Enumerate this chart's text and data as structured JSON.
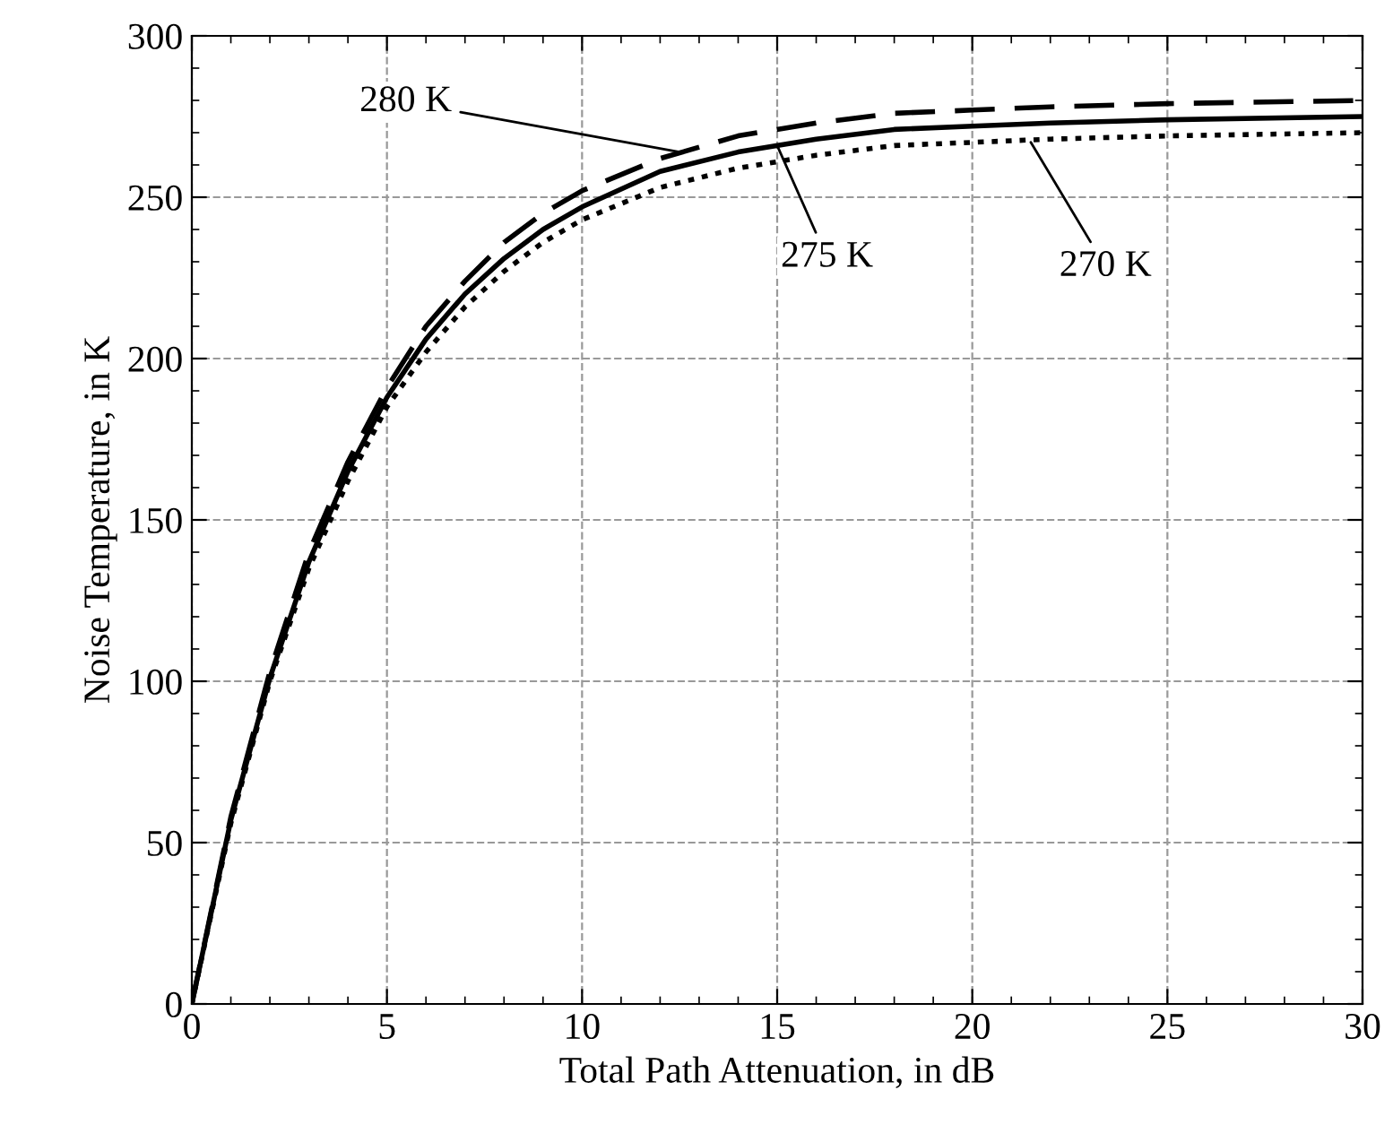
{
  "chart_data": {
    "type": "line",
    "xlabel": "Total Path Attenuation, in dB",
    "ylabel": "Noise Temperature, in K",
    "x": [
      0,
      1,
      2,
      3,
      4,
      5,
      6,
      7,
      8,
      9,
      10,
      12,
      14,
      16,
      18,
      20,
      22,
      25,
      30
    ],
    "series": [
      {
        "color": "#000000",
        "line_style": "dashed",
        "values": [
          0,
          58,
          103,
          140,
          168,
          191,
          210,
          224,
          236,
          245,
          252,
          262,
          269,
          273,
          276,
          277,
          278,
          279,
          280
        ]
      },
      {
        "color": "#000000",
        "line_style": "solid",
        "values": [
          0,
          57,
          101,
          137,
          165,
          188,
          206,
          220,
          231,
          240,
          247,
          258,
          264,
          268,
          271,
          272,
          273,
          274,
          275
        ]
      },
      {
        "color": "#000000",
        "line_style": "dotted",
        "values": [
          0,
          56,
          100,
          135,
          162,
          185,
          202,
          216,
          227,
          236,
          243,
          253,
          259,
          263,
          266,
          267,
          268,
          269,
          270
        ]
      }
    ],
    "annotations": [
      {
        "text": "280 K",
        "x": 12.5,
        "y": 264
      },
      {
        "text": "275 K",
        "x": 15,
        "y": 266
      },
      {
        "text": "270 K",
        "x": 21.5,
        "y": 267
      }
    ],
    "xlim": [
      0,
      30
    ],
    "ylim": [
      0,
      300
    ],
    "xticks": [
      0,
      5,
      10,
      15,
      20,
      25,
      30
    ],
    "yticks": [
      0,
      50,
      100,
      150,
      200,
      250,
      300
    ],
    "grid": true,
    "legend": false
  }
}
